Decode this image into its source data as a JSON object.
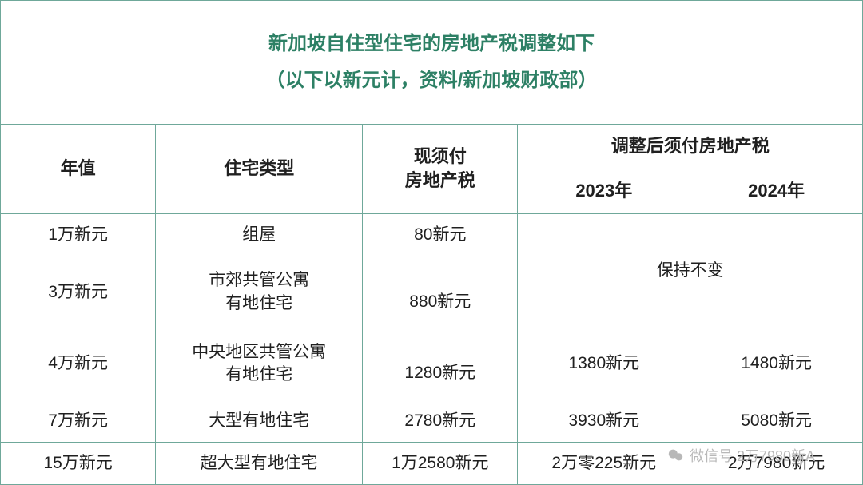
{
  "title": {
    "line1": "新加坡自住型住宅的房地产税调整如下",
    "line2": "（以下以新元计，资料/新加坡财政部）"
  },
  "headers": {
    "annual_value": "年值",
    "type": "住宅类型",
    "current_tax": "现须付\n房地产税",
    "adjusted_tax": "调整后须付房地产税",
    "year_2023": "2023年",
    "year_2024": "2024年"
  },
  "rows": [
    {
      "annual_value": "1万新元",
      "type": "组屋",
      "current_tax": "80新元"
    },
    {
      "annual_value": "3万新元",
      "type": "市郊共管公寓\n有地住宅",
      "current_tax": "880新元"
    },
    {
      "annual_value": "4万新元",
      "type": "中央地区共管公寓\n有地住宅",
      "current_tax": "1280新元",
      "y2023": "1380新元",
      "y2024": "1480新元"
    },
    {
      "annual_value": "7万新元",
      "type": "大型有地住宅",
      "current_tax": "2780新元",
      "y2023": "3930新元",
      "y2024": "5080新元"
    },
    {
      "annual_value": "15万新元",
      "type": "超大型有地住宅",
      "current_tax": "1万2580新元",
      "y2023": "2万零225新元",
      "y2024": "2万7980新元"
    }
  ],
  "unchanged_label": "保持不变",
  "watermark": "微信号 2万7980新A",
  "colors": {
    "border": "#6fa89a",
    "title_text": "#2d8065",
    "body_text": "#202020",
    "background": "#ffffff",
    "watermark_text": "#b8b8b8"
  },
  "fontsize": {
    "title": 24,
    "header": 22,
    "body": 21
  },
  "column_widths_pct": [
    18,
    24,
    18,
    20,
    20
  ]
}
